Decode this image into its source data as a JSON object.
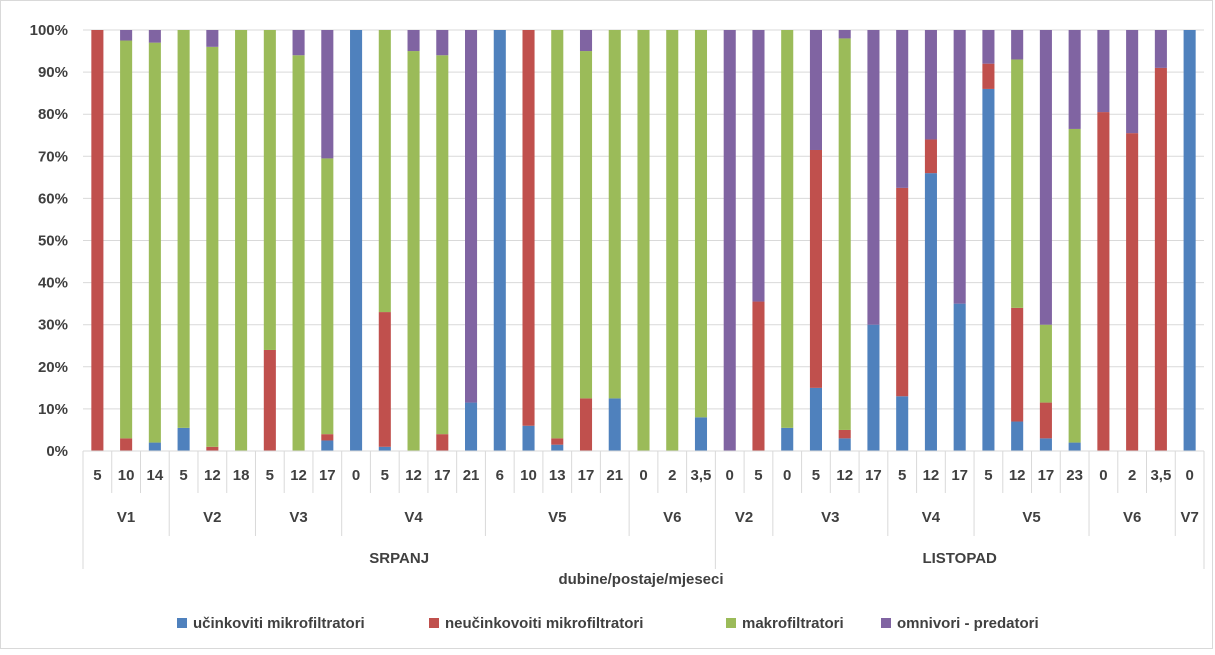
{
  "chart_data": {
    "type": "bar",
    "stacked": true,
    "percent": true,
    "xlabel": "dubine/postaje/mjeseci",
    "ylabel": "",
    "ylim": [
      0,
      100
    ],
    "y_ticks": [
      "0%",
      "10%",
      "20%",
      "30%",
      "40%",
      "50%",
      "60%",
      "70%",
      "80%",
      "90%",
      "100%"
    ],
    "grid": true,
    "legend_position": "bottom",
    "months": [
      {
        "label": "SRPANJ",
        "stations": [
          {
            "label": "V1",
            "depths": [
              "5",
              "10",
              "14"
            ]
          },
          {
            "label": "V2",
            "depths": [
              "5",
              "12",
              "18"
            ]
          },
          {
            "label": "V3",
            "depths": [
              "5",
              "12",
              "17"
            ]
          },
          {
            "label": "V4",
            "depths": [
              "0",
              "5",
              "12",
              "17",
              "21"
            ]
          },
          {
            "label": "V5",
            "depths": [
              "6",
              "10",
              "13",
              "17",
              "21"
            ]
          },
          {
            "label": "V6",
            "depths": [
              "0",
              "2",
              "3,5"
            ]
          }
        ]
      },
      {
        "label": "LISTOPAD",
        "stations": [
          {
            "label": "V2",
            "depths": [
              "0",
              "5"
            ]
          },
          {
            "label": "V3",
            "depths": [
              "0",
              "5",
              "12",
              "17"
            ]
          },
          {
            "label": "V4",
            "depths": [
              "5",
              "12",
              "17"
            ]
          },
          {
            "label": "V5",
            "depths": [
              "5",
              "12",
              "17",
              "23"
            ]
          },
          {
            "label": "V6",
            "depths": [
              "0",
              "2",
              "3,5"
            ]
          },
          {
            "label": "V7",
            "depths": [
              "0"
            ]
          }
        ]
      }
    ],
    "series": [
      {
        "name": "učinkoviti mikrofiltratori",
        "color": "#4F81BD",
        "values": [
          0,
          0,
          2,
          5.5,
          0,
          0,
          0,
          0,
          2.5,
          100,
          1,
          0,
          0,
          11.5,
          100,
          6,
          1.5,
          0,
          12.5,
          0,
          0,
          8,
          0,
          0,
          5.5,
          15,
          3,
          30,
          13,
          66,
          35,
          86,
          7,
          3,
          2,
          0,
          0,
          0,
          100
        ]
      },
      {
        "name": "neučinkovoiti mikrofiltratori",
        "color": "#C0504D",
        "values": [
          100,
          3,
          0,
          0,
          1,
          0,
          24,
          0,
          1.5,
          0,
          32,
          0,
          4,
          0,
          0,
          94,
          1.5,
          12.5,
          0,
          0,
          0,
          0,
          0,
          35.5,
          0,
          56.5,
          2,
          0,
          49.5,
          8,
          0,
          6,
          27,
          8.5,
          0,
          80.5,
          75.5,
          91,
          0
        ]
      },
      {
        "name": "makrofiltratori",
        "color": "#9BBB59",
        "values": [
          0,
          94.5,
          95,
          94.5,
          95,
          100,
          76,
          94,
          65.5,
          0,
          67,
          95,
          90,
          0,
          0,
          0,
          97,
          82.5,
          87.5,
          100,
          100,
          92,
          0,
          0,
          94.5,
          0,
          93,
          0,
          0,
          0,
          0,
          0,
          59,
          18.5,
          74.5,
          0,
          0,
          0,
          0
        ]
      },
      {
        "name": "omnivori - predatori",
        "color": "#8064A2",
        "values": [
          0,
          2.5,
          3,
          0,
          4,
          0,
          0,
          6,
          30.5,
          0,
          0,
          5,
          6,
          88.5,
          0,
          0,
          0,
          5,
          0,
          0,
          0,
          0,
          100,
          64.5,
          0,
          28.5,
          2,
          70,
          37.5,
          26,
          65,
          8,
          7,
          70,
          23.5,
          19.5,
          24.5,
          9,
          0
        ]
      }
    ]
  }
}
